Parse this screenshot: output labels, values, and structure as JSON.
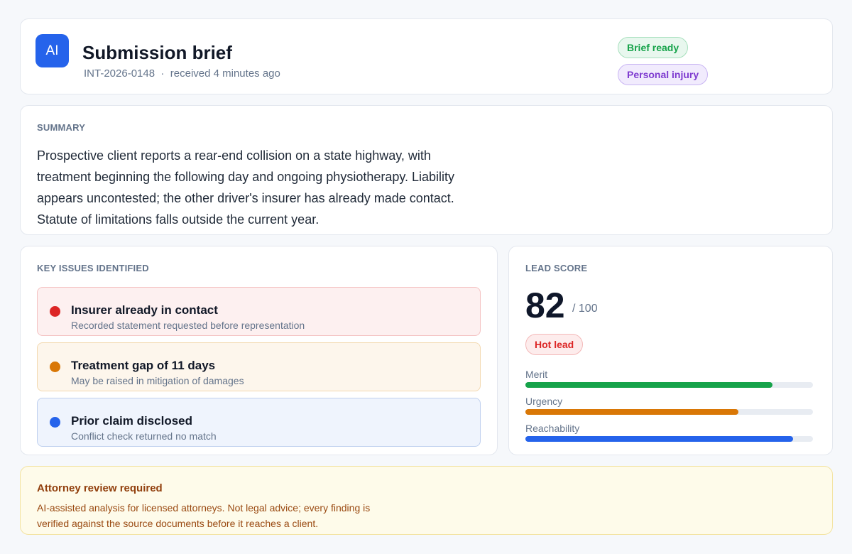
{
  "header": {
    "icon": "AI",
    "title": "Submission brief",
    "id": "INT-2026-0148",
    "separator": "·",
    "received": "received 4 minutes ago",
    "badges": [
      "Brief ready",
      "Personal injury"
    ]
  },
  "summary": {
    "label": "SUMMARY",
    "text": "Prospective client reports a rear-end collision on a state highway, with treatment beginning the following day and ongoing physiotherapy. Liability appears uncontested; the other driver's insurer has already made contact. Statute of limitations falls outside the current year."
  },
  "issues": {
    "label": "KEY ISSUES IDENTIFIED",
    "items": [
      {
        "title": "Insurer already in contact",
        "detail": "Recorded statement requested before representation"
      },
      {
        "title": "Treatment gap of 11 days",
        "detail": "May be raised in mitigation of damages"
      },
      {
        "title": "Prior claim disclosed",
        "detail": "Conflict check returned no match"
      }
    ]
  },
  "lead_score": {
    "label": "LEAD SCORE",
    "score": 82,
    "out_of": "/ 100",
    "badge": "Hot lead",
    "bar_scale": [
      0,
      100
    ],
    "bars": [
      {
        "name": "Merit",
        "value": 86,
        "color": "#16a34a"
      },
      {
        "name": "Urgency",
        "value": 74,
        "color": "#d97706"
      },
      {
        "name": "Reachability",
        "value": 93,
        "color": "#2563eb"
      }
    ]
  },
  "footer": {
    "title": "Attorney review required",
    "text": "AI-assisted analysis for licensed attorneys. Not legal advice; every finding is verified against the source documents before it reaches a client."
  }
}
